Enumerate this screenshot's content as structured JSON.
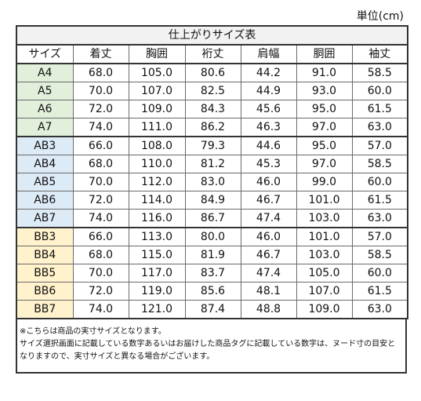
{
  "unit_label": "単位(cm)",
  "table": {
    "title": "仕上がりサイズ表",
    "headers": [
      "サイズ",
      "着丈",
      "胸囲",
      "裄丈",
      "肩幅",
      "胴囲",
      "袖丈"
    ],
    "rows": [
      {
        "size": "A4",
        "group": "green",
        "values": [
          "68.0",
          "105.0",
          "80.6",
          "44.2",
          "91.0",
          "58.5"
        ]
      },
      {
        "size": "A5",
        "group": "green",
        "values": [
          "70.0",
          "107.0",
          "82.5",
          "44.9",
          "93.0",
          "60.0"
        ]
      },
      {
        "size": "A6",
        "group": "green",
        "values": [
          "72.0",
          "109.0",
          "84.3",
          "45.6",
          "95.0",
          "61.5"
        ]
      },
      {
        "size": "A7",
        "group": "green",
        "values": [
          "74.0",
          "111.0",
          "86.2",
          "46.3",
          "97.0",
          "63.0"
        ]
      },
      {
        "size": "AB3",
        "group": "blue",
        "values": [
          "66.0",
          "108.0",
          "79.3",
          "44.6",
          "95.0",
          "57.0"
        ]
      },
      {
        "size": "AB4",
        "group": "blue",
        "values": [
          "68.0",
          "110.0",
          "81.2",
          "45.3",
          "97.0",
          "58.5"
        ]
      },
      {
        "size": "AB5",
        "group": "blue",
        "values": [
          "70.0",
          "112.0",
          "83.0",
          "46.0",
          "99.0",
          "60.0"
        ]
      },
      {
        "size": "AB6",
        "group": "blue",
        "values": [
          "72.0",
          "114.0",
          "84.9",
          "46.7",
          "101.0",
          "61.5"
        ]
      },
      {
        "size": "AB7",
        "group": "blue",
        "values": [
          "74.0",
          "116.0",
          "86.7",
          "47.4",
          "103.0",
          "63.0"
        ]
      },
      {
        "size": "BB3",
        "group": "orange",
        "values": [
          "66.0",
          "113.0",
          "80.0",
          "46.0",
          "101.0",
          "57.0"
        ]
      },
      {
        "size": "BB4",
        "group": "orange",
        "values": [
          "68.0",
          "115.0",
          "81.9",
          "46.7",
          "103.0",
          "58.5"
        ]
      },
      {
        "size": "BB5",
        "group": "orange",
        "values": [
          "70.0",
          "117.0",
          "83.7",
          "47.4",
          "105.0",
          "60.0"
        ]
      },
      {
        "size": "BB6",
        "group": "orange",
        "values": [
          "72.0",
          "119.0",
          "85.6",
          "48.1",
          "107.0",
          "61.5"
        ]
      },
      {
        "size": "BB7",
        "group": "orange",
        "values": [
          "74.0",
          "121.0",
          "87.4",
          "48.8",
          "109.0",
          "63.0"
        ]
      }
    ],
    "group_colors": {
      "green": "#e2efda",
      "blue": "#ddebf7",
      "orange": "#fff2cc"
    }
  },
  "notes": [
    "※こちらは商品の実寸サイズとなります。",
    "サイズ選択画面に記載している数字あるいはお届けした商品タグに記載している数字は、ヌード寸の目安と",
    "なりますので、実寸サイズと異なる場合がございます。"
  ]
}
